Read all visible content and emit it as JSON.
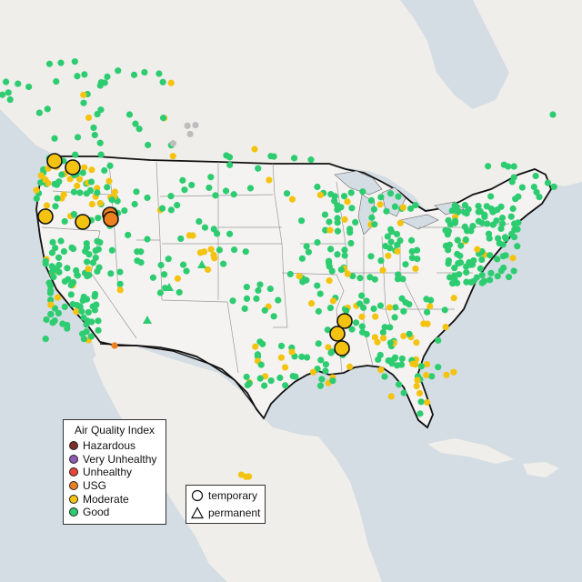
{
  "map": {
    "colors": {
      "water": "#d4dde3",
      "land": "#f0eeea",
      "us_land": "#f4f3f1",
      "border": "#111111",
      "state_lines": "#9a9a9a"
    }
  },
  "legend_aqi": {
    "title": "Air Quality Index",
    "items": [
      {
        "label": "Hazardous",
        "color": "#7e2e24"
      },
      {
        "label": "Very Unhealthy",
        "color": "#8e5bb5"
      },
      {
        "label": "Unhealthy",
        "color": "#e8443a"
      },
      {
        "label": "USG",
        "color": "#ec7f1e"
      },
      {
        "label": "Moderate",
        "color": "#f4c30f"
      },
      {
        "label": "Good",
        "color": "#2ecc71"
      }
    ]
  },
  "legend_type": {
    "items": [
      {
        "label": "temporary",
        "shape": "circle"
      },
      {
        "label": "permanent",
        "shape": "triangle"
      }
    ]
  }
}
